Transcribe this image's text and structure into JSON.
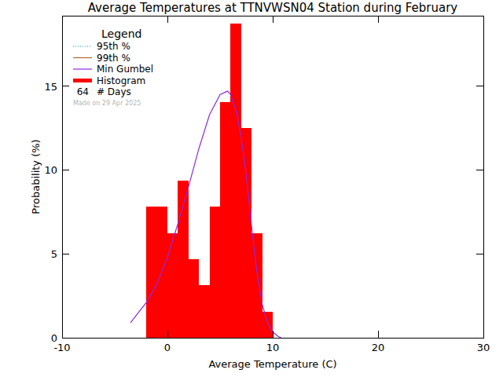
{
  "chart_data": {
    "type": "histogram",
    "title": "Average Temperatures at TTNVWSN04 Station during February",
    "x_label": "Average Temperature (C)",
    "y_label": "Probability (%)",
    "name": "Histogram",
    "color": "#ff0000",
    "bins": [
      -2,
      -1,
      0,
      1,
      2,
      3,
      4,
      5,
      6,
      7,
      8,
      9,
      10
    ],
    "values": [
      7.8125,
      7.8125,
      6.25,
      9.375,
      4.6875,
      3.125,
      7.8125,
      14.0625,
      18.75,
      12.5,
      6.25,
      1.5625
    ],
    "series": [
      {
        "name": "95th %",
        "type": "line",
        "color": "#00b0b0",
        "line_style": "dotted",
        "x": [],
        "values": []
      },
      {
        "name": "99th %",
        "type": "line",
        "color": "#b46432",
        "line_style": "solid",
        "x": [],
        "values": []
      },
      {
        "name": "Min Gumbel",
        "type": "line",
        "color": "#8c28e6",
        "line_style": "solid",
        "x": [
          -3.5,
          -3,
          -2,
          -1,
          0,
          1,
          2,
          3,
          4,
          5,
          5.7,
          6,
          6.5,
          7,
          7.5,
          8,
          8.5,
          9,
          9.5,
          10,
          10.5,
          10.8
        ],
        "values": [
          0.9,
          1.3,
          2.1,
          3.2,
          4.8,
          6.8,
          9.0,
          11.3,
          13.3,
          14.5,
          14.7,
          14.5,
          13.6,
          12.0,
          9.6,
          6.6,
          3.9,
          2.0,
          0.9,
          0.35,
          0.08,
          0.0
        ]
      }
    ],
    "xlim": [
      -10,
      30
    ],
    "xticks": [
      -10,
      0,
      10,
      20,
      30
    ],
    "ylim": [
      0,
      19.2
    ],
    "yticks": [
      0,
      5,
      10,
      15
    ],
    "legend": "top-left",
    "legend_title": "Legend",
    "days": 64,
    "days_label": "# Days",
    "note": "Made on 29 Apr 2025"
  }
}
